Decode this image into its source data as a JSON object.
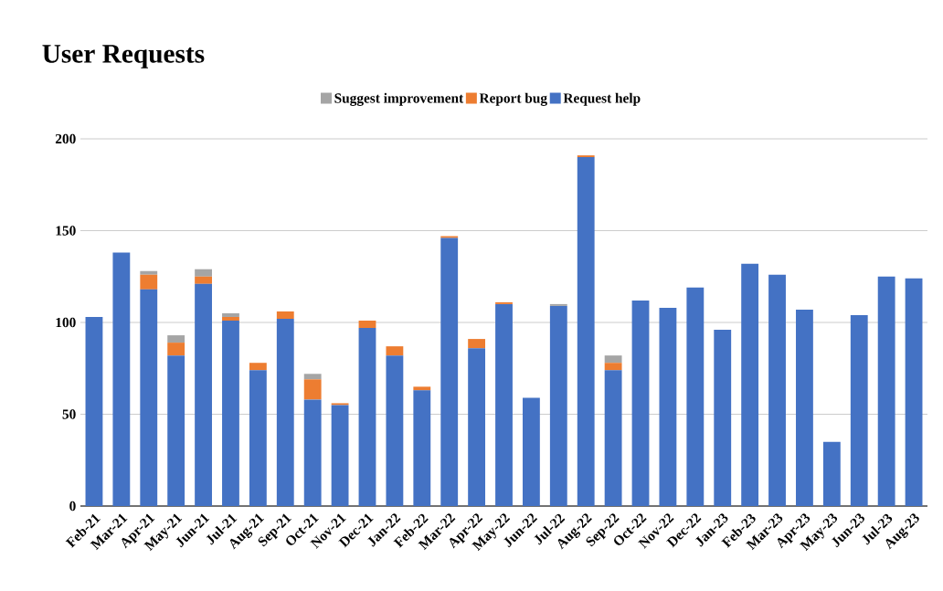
{
  "chart_data": {
    "type": "bar",
    "title": "User Requests",
    "categories": [
      "Feb-21",
      "Mar-21",
      "Apr-21",
      "May-21",
      "Jun-21",
      "Jul-21",
      "Aug-21",
      "Sep-21",
      "Oct-21",
      "Nov-21",
      "Dec-21",
      "Jan-22",
      "Feb-22",
      "Mar-22",
      "Apr-22",
      "May-22",
      "Jun-22",
      "Jul-22",
      "Aug-22",
      "Sep-22",
      "Oct-22",
      "Nov-22",
      "Dec-22",
      "Jan-23",
      "Feb-23",
      "Mar-23",
      "Apr-23",
      "May-23",
      "Jun-23",
      "Jul-23",
      "Aug-23"
    ],
    "stacked": true,
    "series": [
      {
        "name": "Request help",
        "color": "#4472c4",
        "values": [
          103,
          138,
          118,
          82,
          121,
          101,
          74,
          102,
          58,
          55,
          97,
          82,
          63,
          146,
          86,
          110,
          59,
          109,
          190,
          74,
          112,
          108,
          119,
          96,
          132,
          126,
          107,
          35,
          104,
          125,
          124
        ]
      },
      {
        "name": "Report bug",
        "color": "#ed7d31",
        "values": [
          0,
          0,
          8,
          7,
          4,
          2,
          4,
          4,
          11,
          1,
          4,
          5,
          2,
          1,
          5,
          1,
          0,
          0,
          1,
          4,
          0,
          0,
          0,
          0,
          0,
          0,
          0,
          0,
          0,
          0,
          0
        ]
      },
      {
        "name": "Suggest improvement",
        "color": "#a5a5a5",
        "values": [
          0,
          0,
          2,
          4,
          4,
          2,
          0,
          0,
          3,
          0,
          0,
          0,
          0,
          0,
          0,
          0,
          0,
          1,
          0,
          4,
          0,
          0,
          0,
          0,
          0,
          0,
          0,
          0,
          0,
          0,
          0
        ]
      }
    ],
    "ylim": [
      0,
      200
    ],
    "yticks": [
      0,
      50,
      100,
      150,
      200
    ],
    "grid": "y",
    "legend": "top"
  }
}
